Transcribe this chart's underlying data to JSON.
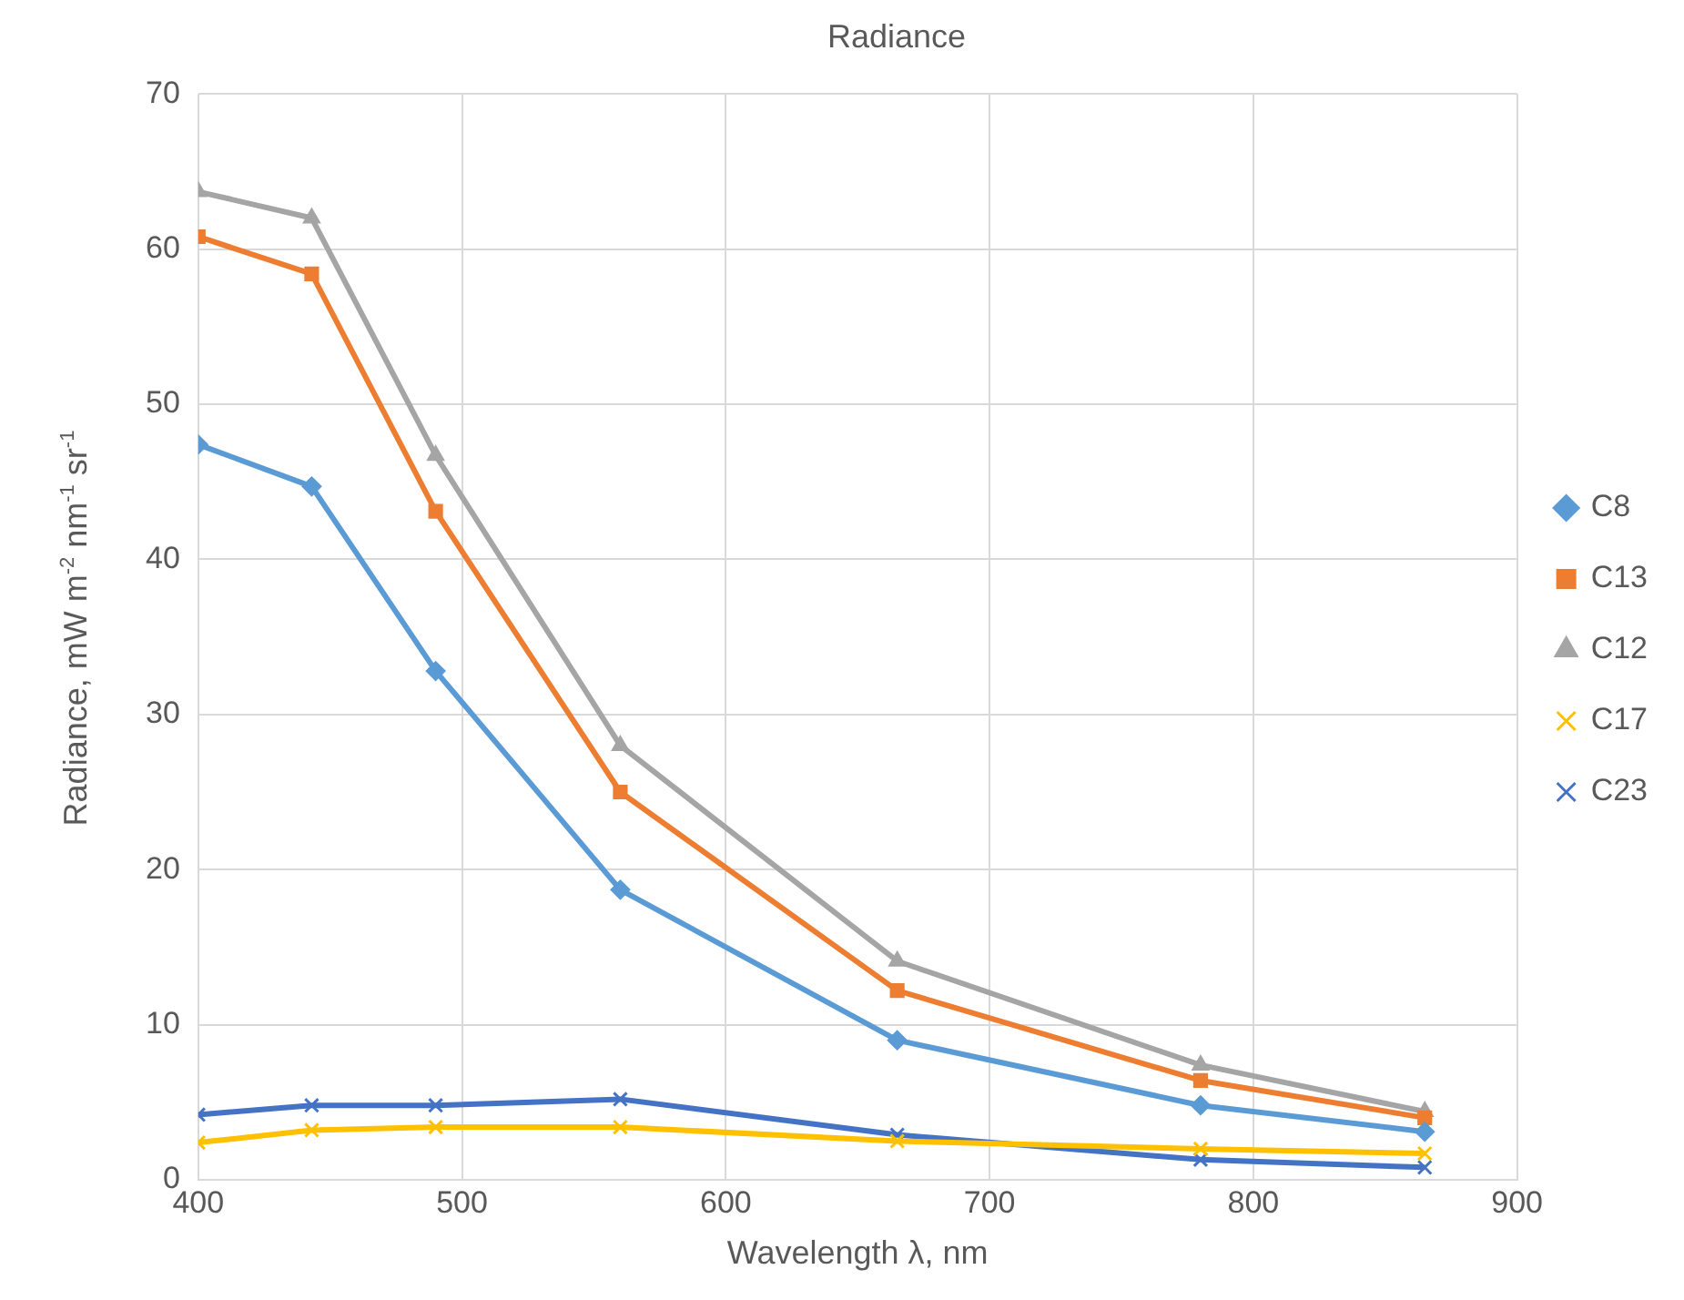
{
  "chart_data": {
    "type": "line",
    "title": "Radiance",
    "xlabel": "Wavelength λ, nm",
    "ylabel": "Radiance, mW m$^{-2}$ nm$^{-1}$ sr$^{-1}$",
    "x": [
      400,
      443,
      490,
      560,
      665,
      780,
      865
    ],
    "xlim": [
      400,
      900
    ],
    "xticks": [
      400,
      500,
      600,
      700,
      800,
      900
    ],
    "ylim": [
      0,
      70
    ],
    "yticks": [
      0,
      10,
      20,
      30,
      40,
      50,
      60,
      70
    ],
    "grid": true,
    "legend": "right",
    "series": [
      {
        "name": "C8",
        "color": "#5b9bd5",
        "marker": "diamond",
        "values": [
          47.4,
          44.7,
          32.8,
          18.7,
          9.0,
          4.8,
          3.1
        ]
      },
      {
        "name": "C13",
        "color": "#ed7d31",
        "marker": "square",
        "values": [
          60.8,
          58.4,
          43.1,
          25.0,
          12.2,
          6.4,
          4.0
        ]
      },
      {
        "name": "C12",
        "color": "#a5a5a5",
        "marker": "triangle",
        "values": [
          63.7,
          62.0,
          46.7,
          28.0,
          14.1,
          7.4,
          4.4
        ]
      },
      {
        "name": "C17",
        "color": "#ffc000",
        "marker": "cross",
        "values": [
          2.4,
          3.2,
          3.4,
          3.4,
          2.5,
          2.0,
          1.7
        ]
      },
      {
        "name": "C23",
        "color": "#4472c4",
        "marker": "cross",
        "values": [
          4.2,
          4.8,
          4.8,
          5.2,
          2.9,
          1.3,
          0.8
        ]
      }
    ]
  }
}
